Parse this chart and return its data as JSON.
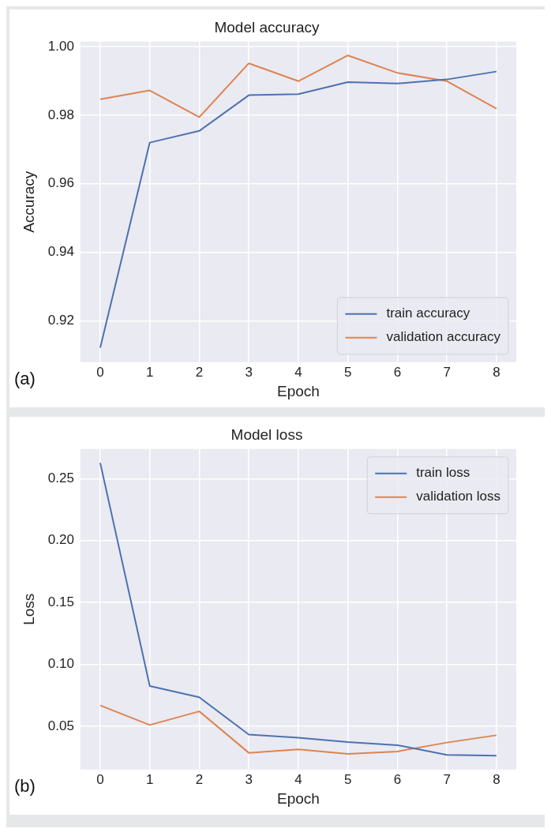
{
  "chart_data": [
    {
      "type": "line",
      "title": "Model accuracy",
      "xlabel": "Epoch",
      "ylabel": "Accuracy",
      "annotations": [
        "(a)"
      ],
      "x": [
        0,
        1,
        2,
        3,
        4,
        5,
        6,
        7,
        8
      ],
      "xlim": [
        -0.4,
        8.4
      ],
      "xticks": [
        0,
        1,
        2,
        3,
        4,
        5,
        6,
        7,
        8
      ],
      "ylim": [
        0.908,
        1.0014
      ],
      "yticks": [
        {
          "value": 0.92,
          "label": "0.92"
        },
        {
          "value": 0.94,
          "label": "0.94"
        },
        {
          "value": 0.96,
          "label": "0.96"
        },
        {
          "value": 0.98,
          "label": "0.98"
        },
        {
          "value": 1.0,
          "label": "1.00"
        }
      ],
      "grid": true,
      "legend": "bottom right",
      "line_style": "solid",
      "series": [
        {
          "name": "train accuracy",
          "color": "#4c72b0",
          "values": [
            0.9122,
            0.972,
            0.9754,
            0.9858,
            0.9861,
            0.9896,
            0.9892,
            0.9904,
            0.9927
          ]
        },
        {
          "name": "validation accuracy",
          "color": "#dd8452",
          "values": [
            0.9846,
            0.9872,
            0.9794,
            0.9951,
            0.9899,
            0.9974,
            0.9923,
            0.9899,
            0.9819
          ]
        }
      ]
    },
    {
      "type": "line",
      "title": "Model loss",
      "xlabel": "Epoch",
      "ylabel": "Loss",
      "annotations": [
        "(b)"
      ],
      "x": [
        0,
        1,
        2,
        3,
        4,
        5,
        6,
        7,
        8
      ],
      "xlim": [
        -0.4,
        8.4
      ],
      "xticks": [
        0,
        1,
        2,
        3,
        4,
        5,
        6,
        7,
        8
      ],
      "ylim": [
        0.015,
        0.274
      ],
      "yticks": [
        {
          "value": 0.05,
          "label": "0.05"
        },
        {
          "value": 0.1,
          "label": "0.10"
        },
        {
          "value": 0.15,
          "label": "0.15"
        },
        {
          "value": 0.2,
          "label": "0.20"
        },
        {
          "value": 0.25,
          "label": "0.25"
        }
      ],
      "grid": true,
      "legend": "top right",
      "line_style": "solid",
      "series": [
        {
          "name": "train loss",
          "color": "#4c72b0",
          "values": [
            0.2628,
            0.0825,
            0.0734,
            0.0433,
            0.0407,
            0.0372,
            0.0347,
            0.0268,
            0.0262
          ]
        },
        {
          "name": "validation loss",
          "color": "#dd8452",
          "values": [
            0.0668,
            0.051,
            0.062,
            0.0285,
            0.0313,
            0.0276,
            0.0296,
            0.0368,
            0.0427
          ]
        }
      ]
    }
  ]
}
